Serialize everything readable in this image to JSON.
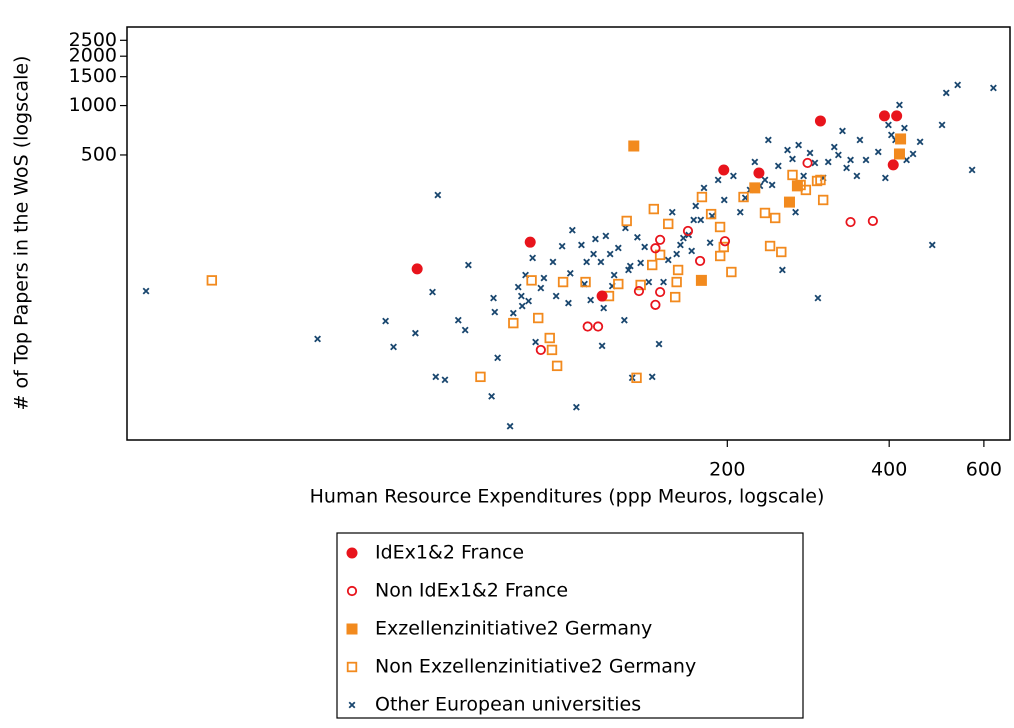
{
  "chart_data": {
    "type": "scatter",
    "x_label": "Human Resource Expenditures  (ppp Meuros, logscale)",
    "y_label": "# of Top Papers in the WoS (logscale)",
    "x_scale": "log",
    "y_scale": "log",
    "xlim": [
      15.3,
      671
    ],
    "ylim": [
      9.15,
      3013
    ],
    "xticks": [
      200,
      400,
      600
    ],
    "yticks": [
      500,
      1000,
      1500,
      2000,
      2500
    ],
    "legend_position": "bottom",
    "series": [
      {
        "name": "IdEx1&2 France",
        "color": "#e8141c",
        "marker": "filled-circle",
        "x": [
          53,
          86,
          117,
          197,
          229,
          298,
          392,
          413,
          407
        ],
        "y": [
          101,
          147,
          69,
          405,
          388,
          806,
          865,
          865,
          435
        ]
      },
      {
        "name": "Non IdEx1&2 France",
        "color": "#e8141c",
        "marker": "open-circle",
        "x": [
          90,
          110,
          115,
          137,
          147,
          150,
          150,
          147,
          169,
          178,
          198,
          282,
          339,
          373
        ],
        "y": [
          32.4,
          45,
          45,
          74,
          61,
          73,
          152,
          135,
          172,
          113,
          149,
          447,
          195,
          198
        ]
      },
      {
        "name": "Exzellenzinitiative2 Germany",
        "color": "#f28a1e",
        "marker": "filled-square",
        "x": [
          134,
          179,
          225,
          261,
          270,
          420,
          418
        ],
        "y": [
          567,
          86,
          315,
          258,
          324,
          626,
          507
        ]
      },
      {
        "name": "Non Exzellenzinitiative2 Germany",
        "color": "#f28a1e",
        "marker": "open-square",
        "x": [
          22,
          69.5,
          80,
          89,
          86.5,
          93.5,
          94.4,
          96.5,
          99,
          109,
          120.5,
          125.4,
          130,
          135.6,
          138,
          146,
          145,
          150,
          155.3,
          162,
          161,
          160,
          179.4,
          186.6,
          193.9,
          194,
          197,
          203.5,
          214.4,
          235,
          245.5,
          240.2,
          252,
          264.4,
          273.7,
          280,
          293.7,
          298,
          301.5
        ],
        "y": [
          86,
          22.2,
          47.2,
          50.7,
          86,
          38.3,
          32.4,
          25.9,
          84,
          84,
          69,
          81.7,
          198,
          21.9,
          80.6,
          234,
          106.7,
          123,
          190,
          99.5,
          84,
          68,
          277,
          218,
          181.9,
          121.1,
          137.4,
          96.7,
          277,
          221.5,
          206.5,
          139.3,
          128.1,
          377.6,
          328,
          306,
          347,
          352,
          265.8
        ]
      },
      {
        "name": "Other European universities",
        "color": "#1a476f",
        "marker": "x",
        "x": [
          16.6,
          34.6,
          46.3,
          47.9,
          52.6,
          56.6,
          57.4,
          59.7,
          57.9,
          63.2,
          65.1,
          66,
          72.9,
          73.5,
          73.9,
          74.8,
          78.9,
          80,
          81.7,
          82.8,
          83.1,
          84.3,
          85.4,
          86.9,
          88,
          90,
          91.2,
          94.8,
          96.1,
          98.6,
          101.3,
          102.1,
          103,
          104.8,
          107.1,
          108.5,
          109.5,
          111.4,
          112.8,
          113.7,
          116.4,
          117,
          117.8,
          118.9,
          121.1,
          122.2,
          123.2,
          125.4,
          128.7,
          129.3,
          131,
          132,
          133.1,
          136.1,
          138,
          140.4,
          142.9,
          145,
          149.3,
          152.2,
          155.3,
          158,
          161,
          163.6,
          165.7,
          169.5,
          171.7,
          173.2,
          174.7,
          178.5,
          181,
          185.8,
          187.4,
          192.3,
          197.4,
          205.3,
          211.4,
          216,
          220.4,
          225,
          230,
          235,
          238.4,
          242.3,
          248.8,
          253.2,
          258.8,
          264.4,
          267.9,
          271.4,
          277.3,
          285,
          291,
          294.8,
          301.5,
          308.1,
          316.2,
          321.8,
          327.5,
          333.3,
          339,
          348.3,
          352.9,
          362.2,
          381.7,
          393.5,
          398.7,
          403.8,
          410.9,
          418,
          427,
          430.9,
          443,
          456.6,
          481,
          501.6,
          510.7,
          536.3,
          570.5,
          625
        ],
        "y": [
          74,
          37.8,
          48.6,
          33.8,
          41,
          73,
          22.2,
          21.3,
          285,
          49.2,
          42.8,
          106.7,
          16.9,
          67.1,
          55.1,
          29,
          11.1,
          54.3,
          78.3,
          69,
          60,
          92.7,
          64.3,
          117.8,
          36.2,
          77.2,
          88.9,
          111.3,
          69,
          139,
          62.5,
          95,
          174,
          14.5,
          141.3,
          81.7,
          111.3,
          65.2,
          124.5,
          153.7,
          111.3,
          34.3,
          58.3,
          160.4,
          124.5,
          79.4,
          92.7,
          135.5,
          49.2,
          179.4,
          99.5,
          105.2,
          21.9,
          157.5,
          109.8,
          137.4,
          84,
          22.2,
          35.2,
          84,
          114.5,
          224,
          124.5,
          141.3,
          155.7,
          162.6,
          129.9,
          200.7,
          244.3,
          200.7,
          315,
          146,
          212.4,
          352,
          265.8,
          372.4,
          224,
          274,
          306,
          453,
          324,
          352,
          617,
          328,
          428.5,
          99.5,
          536,
          472.5,
          224,
          575,
          372.4,
          514,
          447,
          67.1,
          362,
          453,
          559,
          500,
          700,
          416.6,
          466,
          372.4,
          617,
          466,
          522,
          362,
          762,
          662,
          617,
          1009,
          730,
          466,
          507,
          601,
          141.3,
          762,
          1195,
          1336,
          405,
          1281
        ]
      }
    ]
  }
}
